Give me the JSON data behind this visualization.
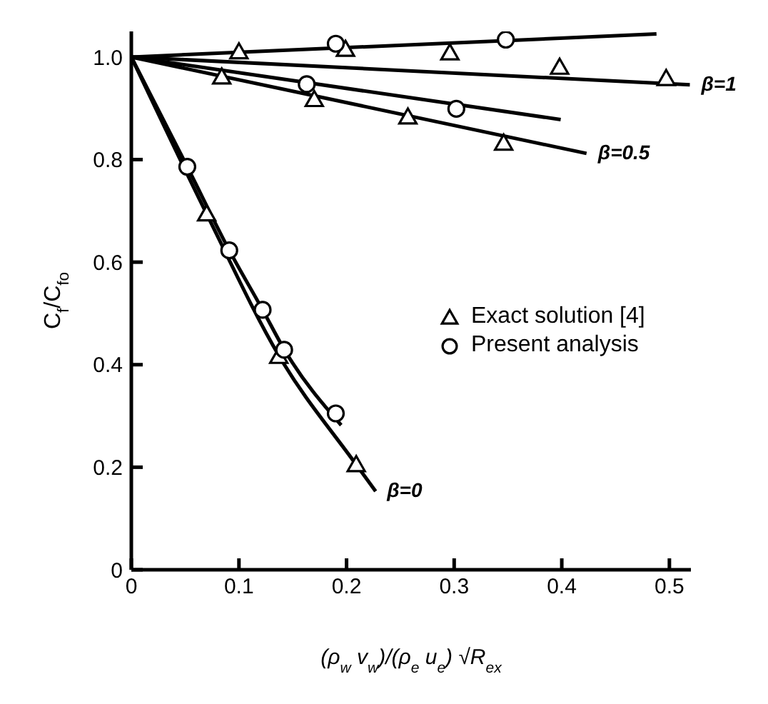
{
  "chart_data": {
    "type": "line",
    "xlabel": "(ρ$_{w}$ v$_{w}$)/(ρ$_{e}$ u$_{e}$) √R$_{ex}$",
    "ylabel": "C$_{f}$/C$_{fo}$",
    "xlim": [
      0,
      0.52
    ],
    "ylim": [
      0,
      1.05
    ],
    "xticks": [
      0,
      0.1,
      0.2,
      0.3,
      0.4,
      0.5
    ],
    "yticks": [
      0,
      0.2,
      0.4,
      0.6,
      0.8,
      {
        "value": 1.0,
        "label": "1.0"
      }
    ],
    "grid": false,
    "legend": "right",
    "line_style": "solid",
    "series": [
      {
        "color": "#000000",
        "marker": "none",
        "x": [
          0,
          0.488
        ],
        "values": [
          1.0,
          1.045
        ]
      },
      {
        "color": "#000000",
        "marker": "none",
        "x": [
          0,
          0.519
        ],
        "values": [
          1.0,
          0.946
        ]
      },
      {
        "color": "#000000",
        "marker": "none",
        "x": [
          0,
          0.399
        ],
        "values": [
          1.0,
          0.878
        ]
      },
      {
        "color": "#000000",
        "marker": "none",
        "x": [
          0,
          0.423
        ],
        "values": [
          1.0,
          0.812
        ]
      },
      {
        "color": "#000000",
        "marker": "none",
        "x": [
          0,
          0.052,
          0.091,
          0.122,
          0.142,
          0.195
        ],
        "values": [
          1.0,
          0.786,
          0.623,
          0.507,
          0.43,
          0.282
        ]
      },
      {
        "color": "#000000",
        "marker": "none",
        "x": [
          0,
          0.07,
          0.137,
          0.209,
          0.227
        ],
        "values": [
          1.0,
          0.694,
          0.418,
          0.205,
          0.153
        ]
      },
      {
        "type": "scatter",
        "name": "Exact solution [4]",
        "color": "#000000",
        "marker": "triangle",
        "x": [
          0.1,
          0.199,
          0.296,
          0.398,
          0.497,
          0.084,
          0.17,
          0.257,
          0.346,
          0.07,
          0.137,
          0.209
        ],
        "values": [
          1.01,
          1.015,
          1.008,
          0.98,
          0.958,
          0.961,
          0.917,
          0.883,
          0.832,
          0.694,
          0.416,
          0.205
        ]
      },
      {
        "type": "scatter",
        "name": "Present analysis",
        "color": "#000000",
        "marker": "circle",
        "x": [
          0.19,
          0.348,
          0.163,
          0.302,
          0.052,
          0.091,
          0.122,
          0.142,
          0.19
        ],
        "values": [
          1.026,
          1.034,
          0.947,
          0.899,
          0.786,
          0.623,
          0.507,
          0.429,
          0.305
        ]
      }
    ],
    "annotations": [
      {
        "text": "β=1",
        "x": 0.519,
        "y": 0.946
      },
      {
        "text": "β=0.5",
        "x": 0.423,
        "y": 0.812
      },
      {
        "text": "β=0",
        "x": 0.227,
        "y": 0.153
      }
    ]
  }
}
